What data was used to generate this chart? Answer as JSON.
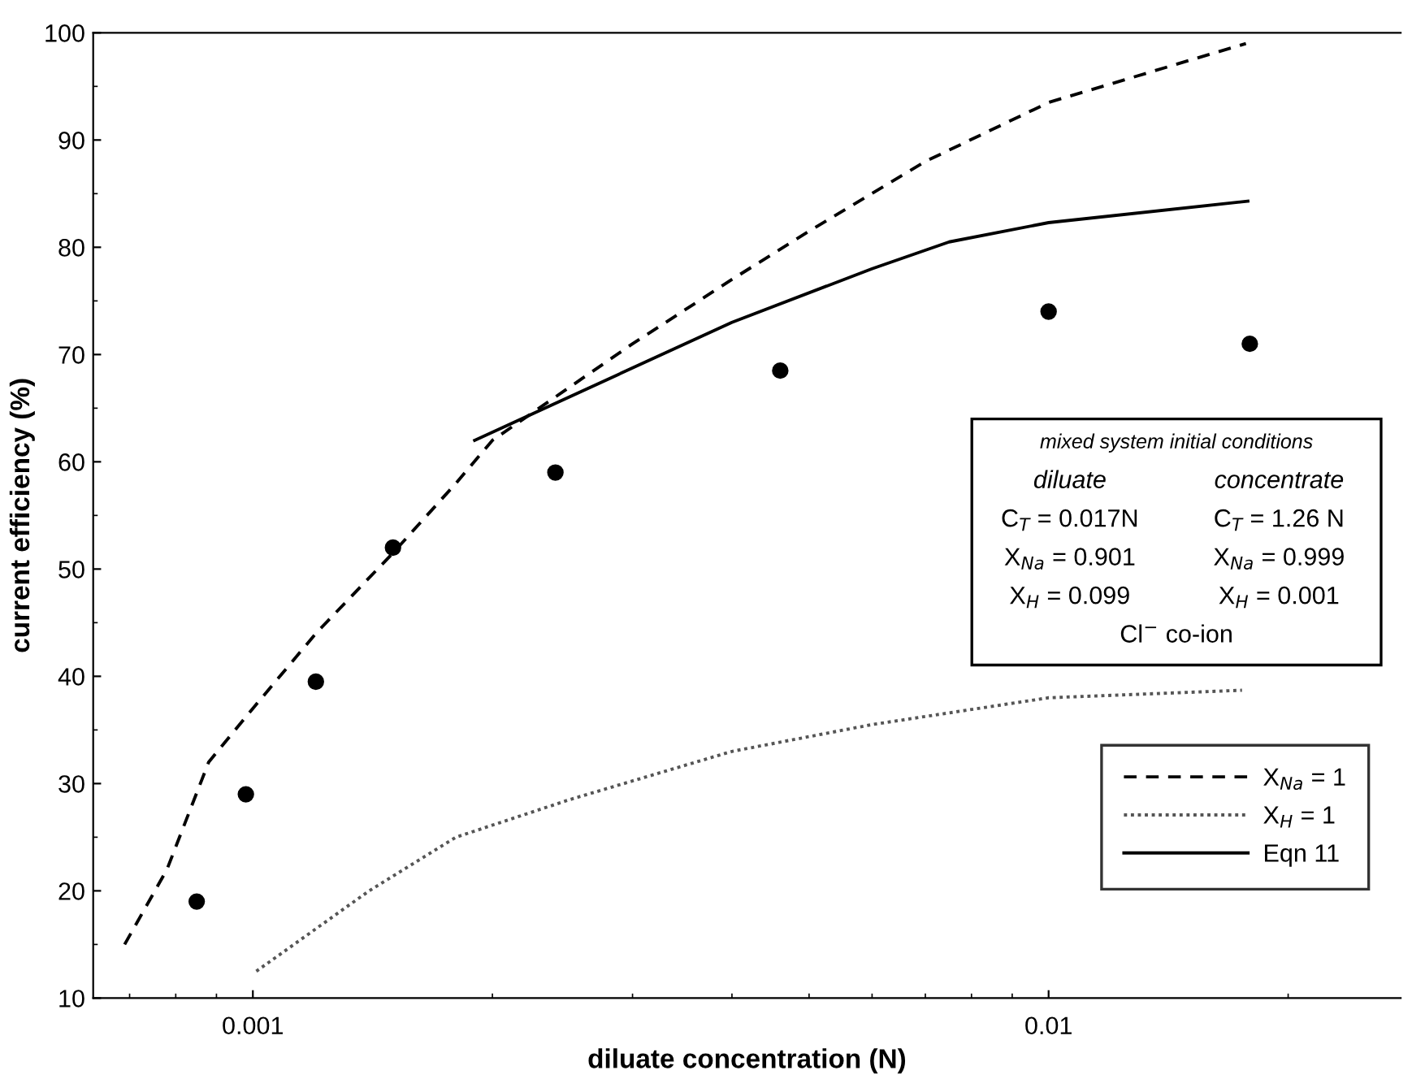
{
  "chart_data": {
    "type": "line",
    "xlabel": "diluate concentration (N)",
    "ylabel": "current efficiency (%)",
    "log": "x",
    "xlim": [
      0.00063,
      0.0277
    ],
    "xticks": [
      0.001,
      0.01
    ],
    "ylim": [
      10,
      100
    ],
    "yticks": [
      10,
      20,
      30,
      40,
      50,
      60,
      70,
      80,
      90,
      100
    ],
    "grid": false,
    "legend": "bottom right",
    "series": [
      {
        "name": "X$_{Na}$ = 1",
        "color": "#000000",
        "line_style": "dashed",
        "marker": "none",
        "x": [
          0.00069,
          0.00078,
          0.00088,
          0.001,
          0.0012,
          0.0015,
          0.0018,
          0.002,
          0.003,
          0.004,
          0.005,
          0.007,
          0.01,
          0.0177
        ],
        "values": [
          15,
          22,
          32,
          37,
          44,
          51.5,
          58,
          62,
          71,
          77,
          81.5,
          88,
          93.5,
          99
        ]
      },
      {
        "name": "X$_{H}$ = 1",
        "color": "#555555",
        "line_style": "dotted",
        "marker": "none",
        "x": [
          0.00101,
          0.0014,
          0.0018,
          0.0025,
          0.004,
          0.006,
          0.01,
          0.0175
        ],
        "values": [
          12.5,
          20,
          25,
          28.5,
          33,
          35.5,
          38,
          38.7
        ]
      },
      {
        "name": "Eqn 11",
        "color": "#000000",
        "line_style": "solid",
        "marker": "none",
        "x": [
          0.0019,
          0.004,
          0.006,
          0.0075,
          0.01,
          0.0178
        ],
        "values": [
          62,
          73,
          78,
          80.5,
          82.3,
          84.3
        ]
      },
      {
        "type": "scatter",
        "color": "#000000",
        "marker": "circle",
        "x": [
          0.00085,
          0.00098,
          0.0012,
          0.0015,
          0.0024,
          0.0046,
          0.01,
          0.0179
        ],
        "values": [
          19,
          29,
          39.5,
          52,
          59,
          68.5,
          74,
          71
        ]
      }
    ],
    "annotations": [
      "mixed system initial conditions",
      "diluate",
      "concentrate",
      "C$_{T}$ = 0.017N",
      "C$_{T}$ = 1.26 N",
      "X$_{Na}$ = 0.901",
      "X$_{Na}$ = 0.999",
      "X$_{H}$ = 0.099",
      "X$_{H}$ = 0.001",
      "Cl$^{−}$ co-ion"
    ]
  }
}
